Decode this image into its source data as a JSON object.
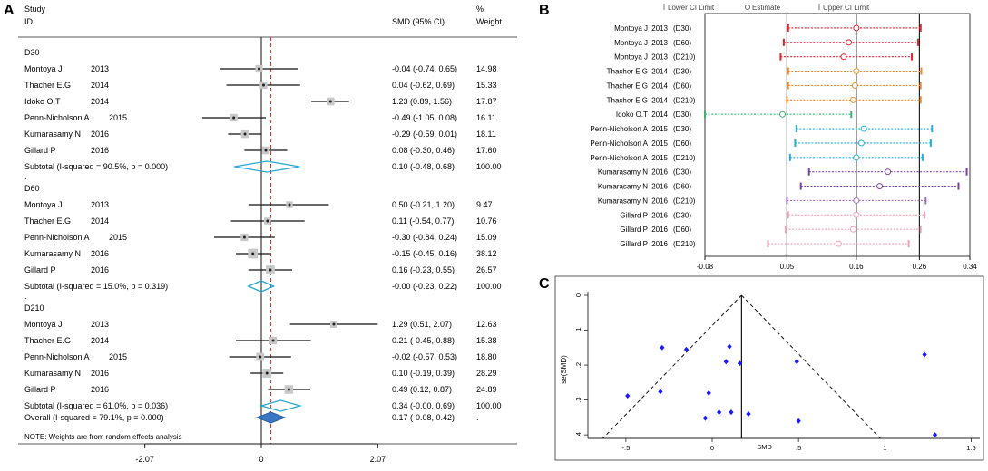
{
  "chart_data": [
    {
      "panel": "A",
      "type": "forest",
      "header": {
        "study": "Study",
        "id": "ID",
        "smd": "SMD (95% CI)",
        "pct": "%",
        "weight": "Weight"
      },
      "axis": {
        "ticks": [
          -2.07,
          0,
          2.07
        ],
        "tick_labels": [
          "-2.07",
          "0",
          "2.07"
        ],
        "overall_line": 0.17
      },
      "groups": [
        {
          "label": "D30",
          "studies": [
            {
              "name": "Montoya J",
              "year": "2013",
              "smd": -0.04,
              "lo": -0.74,
              "hi": 0.65,
              "ci_text": "-0.04 (-0.74, 0.65)",
              "weight": "14.98"
            },
            {
              "name": "Thacher E.G",
              "year": "2014",
              "smd": 0.04,
              "lo": -0.62,
              "hi": 0.69,
              "ci_text": "0.04 (-0.62, 0.69)",
              "weight": "15.33"
            },
            {
              "name": "Idoko O.T",
              "year": "2014",
              "smd": 1.23,
              "lo": 0.89,
              "hi": 1.56,
              "ci_text": "1.23 (0.89, 1.56)",
              "weight": "17.87"
            },
            {
              "name": "Penn-Nicholson A",
              "year": "2015",
              "smd": -0.49,
              "lo": -1.05,
              "hi": 0.08,
              "ci_text": "-0.49 (-1.05, 0.08)",
              "weight": "16.11"
            },
            {
              "name": "Kumarasamy N",
              "year": "2016",
              "smd": -0.29,
              "lo": -0.59,
              "hi": 0.01,
              "ci_text": "-0.29 (-0.59, 0.01)",
              "weight": "18.11"
            },
            {
              "name": "Gillard P",
              "year": "2016",
              "smd": 0.08,
              "lo": -0.3,
              "hi": 0.46,
              "ci_text": "0.08 (-0.30, 0.46)",
              "weight": "17.60"
            }
          ],
          "subtotal": {
            "label": "Subtotal  (I-squared = 90.5%, p = 0.000)",
            "smd": 0.1,
            "lo": -0.48,
            "hi": 0.68,
            "ci_text": "0.10 (-0.48, 0.68)",
            "weight": "100.00"
          },
          "sep": "."
        },
        {
          "label": "D60",
          "studies": [
            {
              "name": "Montoya J",
              "year": "2013",
              "smd": 0.5,
              "lo": -0.21,
              "hi": 1.2,
              "ci_text": "0.50 (-0.21, 1.20)",
              "weight": "9.47"
            },
            {
              "name": "Thacher E.G",
              "year": "2014",
              "smd": 0.11,
              "lo": -0.54,
              "hi": 0.77,
              "ci_text": "0.11 (-0.54, 0.77)",
              "weight": "10.76"
            },
            {
              "name": "Penn-Nicholson A",
              "year": "2015",
              "smd": -0.3,
              "lo": -0.84,
              "hi": 0.24,
              "ci_text": "-0.30 (-0.84, 0.24)",
              "weight": "15.09"
            },
            {
              "name": "Kumarasamy N",
              "year": "2016",
              "smd": -0.15,
              "lo": -0.45,
              "hi": 0.16,
              "ci_text": "-0.15 (-0.45, 0.16)",
              "weight": "38.12"
            },
            {
              "name": "Gillard P",
              "year": "2016",
              "smd": 0.16,
              "lo": -0.23,
              "hi": 0.55,
              "ci_text": "0.16 (-0.23, 0.55)",
              "weight": "26.57"
            }
          ],
          "subtotal": {
            "label": "Subtotal  (I-squared = 15.0%, p = 0.319)",
            "smd": -0.0,
            "lo": -0.23,
            "hi": 0.22,
            "ci_text": "-0.00 (-0.23, 0.22)",
            "weight": "100.00"
          },
          "sep": "."
        },
        {
          "label": "D210",
          "studies": [
            {
              "name": "Montoya J",
              "year": "2013",
              "smd": 1.29,
              "lo": 0.51,
              "hi": 2.07,
              "ci_text": "1.29 (0.51, 2.07)",
              "weight": "12.63"
            },
            {
              "name": "Thacher E.G",
              "year": "2014",
              "smd": 0.21,
              "lo": -0.45,
              "hi": 0.88,
              "ci_text": "0.21 (-0.45, 0.88)",
              "weight": "15.38"
            },
            {
              "name": "Penn-Nicholson A",
              "year": "2015",
              "smd": -0.02,
              "lo": -0.57,
              "hi": 0.53,
              "ci_text": "-0.02 (-0.57, 0.53)",
              "weight": "18.80"
            },
            {
              "name": "Kumarasamy N",
              "year": "2016",
              "smd": 0.1,
              "lo": -0.19,
              "hi": 0.39,
              "ci_text": "0.10 (-0.19, 0.39)",
              "weight": "28.29"
            },
            {
              "name": "Gillard P",
              "year": "2016",
              "smd": 0.49,
              "lo": 0.12,
              "hi": 0.87,
              "ci_text": "0.49 (0.12, 0.87)",
              "weight": "24.89"
            }
          ],
          "subtotal": {
            "label": "Subtotal  (I-squared = 61.0%, p = 0.036)",
            "smd": 0.34,
            "lo": -0.0,
            "hi": 0.69,
            "ci_text": "0.34 (-0.00, 0.69)",
            "weight": "100.00"
          },
          "sep": "."
        }
      ],
      "overall": {
        "label": "Overall  (I-squared = 79.1%, p = 0.000)",
        "smd": 0.17,
        "lo": -0.08,
        "hi": 0.42,
        "ci_text": "0.17 (-0.08, 0.42)",
        "weight": "."
      },
      "note": "NOTE: Weights are from random effects analysis"
    },
    {
      "panel": "B",
      "type": "interval",
      "legend": {
        "lower": "Lower CI Limit",
        "estimate": "Estimate",
        "upper": "Upper CI Limit"
      },
      "x_ticks": [
        -0.08,
        0.05,
        0.16,
        0.26,
        0.34
      ],
      "x_tick_labels": [
        "-0.08",
        "0.05",
        "0.16",
        "0.26",
        "0.34"
      ],
      "x_range": [
        -0.08,
        0.34
      ],
      "ref_lines": [
        0.05,
        0.16,
        0.26
      ],
      "rows": [
        {
          "name": "Montoya J",
          "year": "2013",
          "day": "(D30)",
          "lo": 0.052,
          "est": 0.16,
          "hi": 0.262,
          "color": "#e8202a"
        },
        {
          "name": "Montoya J",
          "year": "2013",
          "day": "(D60)",
          "lo": 0.045,
          "est": 0.148,
          "hi": 0.258,
          "color": "#e8202a"
        },
        {
          "name": "Montoya J",
          "year": "2013",
          "day": "(D210)",
          "lo": 0.04,
          "est": 0.14,
          "hi": 0.248,
          "color": "#e8202a"
        },
        {
          "name": "Thacher E.G",
          "year": "2014",
          "day": "(D30)",
          "lo": 0.052,
          "est": 0.16,
          "hi": 0.263,
          "color": "#f08c2c"
        },
        {
          "name": "Thacher E.G",
          "year": "2014",
          "day": "(D60)",
          "lo": 0.052,
          "est": 0.158,
          "hi": 0.262,
          "color": "#f08c2c"
        },
        {
          "name": "Thacher E.G",
          "year": "2014",
          "day": "(D210)",
          "lo": 0.05,
          "est": 0.155,
          "hi": 0.262,
          "color": "#f08c2c"
        },
        {
          "name": "Idoko O.T",
          "year": "2014",
          "day": "(D30)",
          "lo": -0.08,
          "est": 0.043,
          "hi": 0.152,
          "color": "#3cb371"
        },
        {
          "name": "Penn-Nicholson A",
          "year": "2015",
          "day": "(D30)",
          "lo": 0.065,
          "est": 0.172,
          "hi": 0.28,
          "color": "#1fb0e0"
        },
        {
          "name": "Penn-Nicholson A",
          "year": "2015",
          "day": "(D60)",
          "lo": 0.063,
          "est": 0.168,
          "hi": 0.278,
          "color": "#1fb0e0"
        },
        {
          "name": "Penn-Nicholson A",
          "year": "2015",
          "day": "(D210)",
          "lo": 0.055,
          "est": 0.16,
          "hi": 0.265,
          "color": "#1fb0e0"
        },
        {
          "name": "Kumarasamy N",
          "year": "2016",
          "day": "(D30)",
          "lo": 0.085,
          "est": 0.21,
          "hi": 0.335,
          "color": "#7b3f9e"
        },
        {
          "name": "Kumarasamy N",
          "year": "2016",
          "day": "(D60)",
          "lo": 0.072,
          "est": 0.197,
          "hi": 0.322,
          "color": "#7b3f9e"
        },
        {
          "name": "Kumarasamy N",
          "year": "2016",
          "day": "(D210)",
          "lo": 0.05,
          "est": 0.16,
          "hi": 0.27,
          "color": "#a06cc0"
        },
        {
          "name": "Gillard P",
          "year": "2016",
          "day": "(D30)",
          "lo": 0.052,
          "est": 0.16,
          "hi": 0.268,
          "color": "#f4a0b4"
        },
        {
          "name": "Gillard P",
          "year": "2016",
          "day": "(D60)",
          "lo": 0.048,
          "est": 0.155,
          "hi": 0.262,
          "color": "#f4a0b4"
        },
        {
          "name": "Gillard P",
          "year": "2016",
          "day": "(D210)",
          "lo": 0.02,
          "est": 0.132,
          "hi": 0.243,
          "color": "#f4a0b4"
        }
      ]
    },
    {
      "panel": "C",
      "type": "scatter",
      "title": "",
      "xlabel": "SMD",
      "ylabel": "se(SMD)",
      "x_ticks": [
        -0.5,
        0,
        0.5,
        1,
        1.5
      ],
      "x_tick_labels": [
        "-.5",
        "0",
        ".5",
        "1",
        "1.5"
      ],
      "y_ticks": [
        0,
        0.1,
        0.2,
        0.3,
        0.4
      ],
      "y_tick_labels": [
        "0",
        ".1",
        ".2",
        ".3",
        ".4"
      ],
      "xlim": [
        -0.72,
        1.55
      ],
      "ylim": [
        0,
        0.41
      ],
      "pooled": 0.17,
      "funnel_slope": 1.96,
      "points": [
        {
          "x": -0.29,
          "y": 0.15
        },
        {
          "x": -0.15,
          "y": 0.155
        },
        {
          "x": 0.1,
          "y": 0.147
        },
        {
          "x": 0.08,
          "y": 0.19
        },
        {
          "x": 0.16,
          "y": 0.195
        },
        {
          "x": 0.49,
          "y": 0.19
        },
        {
          "x": 1.23,
          "y": 0.17
        },
        {
          "x": -0.49,
          "y": 0.288
        },
        {
          "x": -0.3,
          "y": 0.276
        },
        {
          "x": -0.02,
          "y": 0.28
        },
        {
          "x": -0.04,
          "y": 0.352
        },
        {
          "x": 0.04,
          "y": 0.335
        },
        {
          "x": 0.11,
          "y": 0.335
        },
        {
          "x": 0.21,
          "y": 0.34
        },
        {
          "x": 0.5,
          "y": 0.36
        },
        {
          "x": 1.29,
          "y": 0.4
        }
      ]
    }
  ]
}
